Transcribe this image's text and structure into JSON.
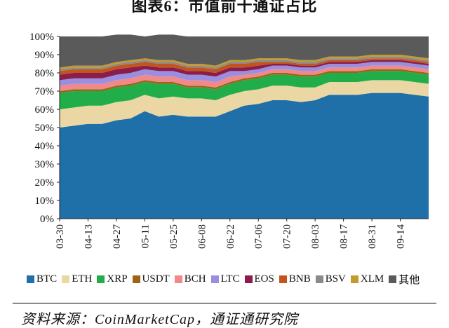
{
  "title": "图表6：市值前十通证占比",
  "source": "资料来源：CoinMarketCap，通证通研究院",
  "chart_data": {
    "type": "area",
    "stacked": true,
    "ylim": [
      0,
      100
    ],
    "yticks": [
      "0%",
      "10%",
      "20%",
      "30%",
      "40%",
      "50%",
      "60%",
      "70%",
      "80%",
      "90%",
      "100%"
    ],
    "xticks": [
      "03-30",
      "04-13",
      "04-27",
      "05-11",
      "05-25",
      "06-08",
      "06-22",
      "07-06",
      "07-20",
      "08-03",
      "08-17",
      "08-31",
      "09-14"
    ],
    "x": [
      "03-30",
      "04-06",
      "04-13",
      "04-20",
      "04-27",
      "05-04",
      "05-11",
      "05-18",
      "05-25",
      "06-01",
      "06-08",
      "06-15",
      "06-22",
      "06-29",
      "07-06",
      "07-13",
      "07-20",
      "07-27",
      "08-03",
      "08-10",
      "08-17",
      "08-24",
      "08-31",
      "09-07",
      "09-14",
      "09-21",
      "09-26"
    ],
    "series": [
      {
        "name": "BTC",
        "color": "#1f6fa8",
        "values": [
          50,
          51,
          52,
          52,
          54,
          55,
          59,
          56,
          57,
          56,
          56,
          56,
          59,
          62,
          63,
          65,
          65,
          64,
          65,
          68,
          68,
          68,
          69,
          69,
          69,
          68,
          67
        ]
      },
      {
        "name": "ETH",
        "color": "#ead7a4",
        "values": [
          10,
          10,
          10,
          10,
          10,
          10,
          9,
          10,
          10,
          10,
          10,
          9,
          9,
          8,
          8,
          8,
          8,
          8,
          7,
          7,
          7,
          7,
          7,
          7,
          7,
          7,
          7
        ]
      },
      {
        "name": "XRP",
        "color": "#22ad4b",
        "values": [
          9,
          9,
          8,
          8,
          8,
          8,
          7,
          8,
          7,
          6,
          6,
          6,
          6,
          6,
          6,
          6,
          6,
          6,
          6,
          5,
          5,
          5,
          5,
          5,
          5,
          5,
          5
        ]
      },
      {
        "name": "USDT",
        "color": "#9c6413",
        "values": [
          1,
          1,
          1,
          1,
          1,
          1,
          1,
          1,
          1,
          1,
          1,
          1,
          1,
          1,
          1,
          1,
          1,
          1,
          1,
          1,
          1,
          1,
          1,
          1,
          1,
          1,
          1
        ]
      },
      {
        "name": "BCH",
        "color": "#f08a8a",
        "values": [
          3,
          3,
          3,
          3,
          3,
          3,
          3,
          3,
          3,
          3,
          3,
          3,
          3,
          2,
          2,
          2,
          2,
          2,
          2,
          2,
          2,
          2,
          2,
          2,
          2,
          2,
          2
        ]
      },
      {
        "name": "LTC",
        "color": "#9a8ee0",
        "values": [
          3,
          3,
          3,
          3,
          3,
          3,
          3,
          3,
          3,
          3,
          3,
          3,
          3,
          2,
          2,
          2,
          2,
          2,
          2,
          2,
          2,
          2,
          2,
          2,
          2,
          2,
          2
        ]
      },
      {
        "name": "EOS",
        "color": "#8b1c4b",
        "values": [
          3,
          3,
          3,
          3,
          3,
          3,
          2,
          2,
          2,
          2,
          2,
          2,
          2,
          2,
          2,
          1,
          1,
          1,
          1,
          1,
          1,
          1,
          1,
          1,
          1,
          1,
          1
        ]
      },
      {
        "name": "BNB",
        "color": "#c2551b",
        "values": [
          2,
          2,
          2,
          2,
          2,
          2,
          2,
          2,
          2,
          2,
          2,
          2,
          2,
          2,
          2,
          1,
          1,
          1,
          1,
          1,
          1,
          1,
          1,
          1,
          1,
          1,
          1
        ]
      },
      {
        "name": "BSV",
        "color": "#8a8a8a",
        "values": [
          1,
          1,
          1,
          1,
          1,
          1,
          1,
          1,
          1,
          1,
          1,
          1,
          1,
          1,
          1,
          1,
          1,
          1,
          1,
          1,
          1,
          1,
          1,
          1,
          1,
          1,
          1
        ]
      },
      {
        "name": "XLM",
        "color": "#c29a2e",
        "values": [
          1,
          1,
          1,
          1,
          1,
          1,
          1,
          1,
          1,
          1,
          1,
          1,
          1,
          1,
          1,
          1,
          1,
          1,
          1,
          1,
          1,
          1,
          1,
          1,
          1,
          1,
          1
        ]
      },
      {
        "name": "其他",
        "color": "#5a5a5a",
        "values": [
          17,
          16,
          16,
          16,
          15,
          14,
          12,
          14,
          14,
          15,
          15,
          16,
          13,
          13,
          12,
          12,
          12,
          13,
          13,
          11,
          11,
          11,
          10,
          10,
          10,
          11,
          12
        ]
      }
    ]
  }
}
